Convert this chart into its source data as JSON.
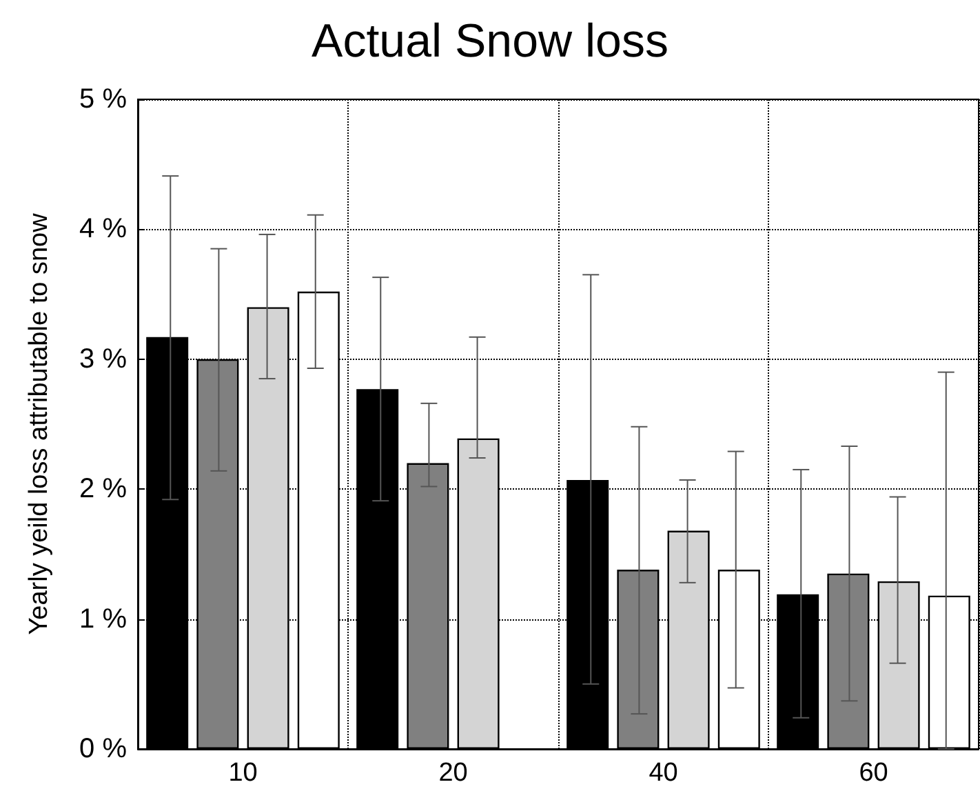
{
  "chart_data": {
    "type": "bar",
    "title": "Actual Snow loss",
    "ylabel": "Yearly yeild loss attributable to snow",
    "categories": [
      "10",
      "20",
      "40",
      "60"
    ],
    "series": [
      {
        "color": "#000000",
        "values": [
          3.17,
          2.77,
          2.07,
          1.19
        ],
        "errors": [
          [
            1.92,
            4.41
          ],
          [
            1.91,
            3.63
          ],
          [
            0.5,
            3.65
          ],
          [
            0.24,
            2.15
          ]
        ]
      },
      {
        "color": "#808080",
        "values": [
          3.0,
          2.2,
          1.38,
          1.35
        ],
        "errors": [
          [
            2.14,
            3.85
          ],
          [
            2.02,
            2.66
          ],
          [
            0.27,
            2.48
          ],
          [
            0.37,
            2.33
          ]
        ]
      },
      {
        "color": "#d4d4d4",
        "values": [
          3.4,
          2.39,
          1.68,
          1.29
        ],
        "errors": [
          [
            2.85,
            3.96
          ],
          [
            2.24,
            3.17
          ],
          [
            1.28,
            2.07
          ],
          [
            0.66,
            1.94
          ]
        ]
      },
      {
        "color": "#ffffff",
        "values": [
          3.52,
          null,
          1.38,
          1.18
        ],
        "errors": [
          [
            2.93,
            4.11
          ],
          null,
          [
            0.47,
            2.29
          ],
          [
            0,
            2.9
          ]
        ]
      }
    ],
    "ylim": [
      0,
      5
    ],
    "yticks": [
      {
        "value": 0,
        "label": "0 %"
      },
      {
        "value": 1,
        "label": "1 %"
      },
      {
        "value": 2,
        "label": "2 %"
      },
      {
        "value": 3,
        "label": "3 %"
      },
      {
        "value": 4,
        "label": "4 %"
      },
      {
        "value": 5,
        "label": "5 %"
      }
    ],
    "grid": true
  }
}
